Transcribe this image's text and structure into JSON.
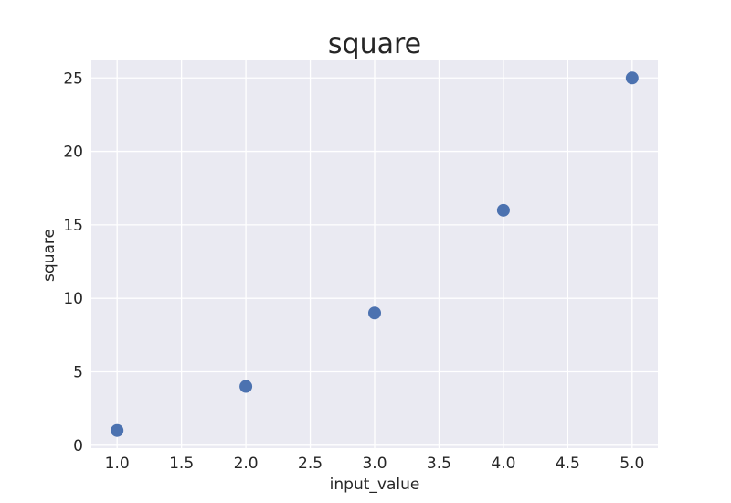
{
  "chart_data": {
    "type": "scatter",
    "title": "square",
    "xlabel": "input_value",
    "ylabel": "square",
    "x": [
      1,
      2,
      3,
      4,
      5
    ],
    "y": [
      1,
      4,
      9,
      16,
      25
    ],
    "xlim": [
      0.8,
      5.2
    ],
    "ylim": [
      -0.2,
      26.2
    ],
    "xticks": [
      1.0,
      1.5,
      2.0,
      2.5,
      3.0,
      3.5,
      4.0,
      4.5,
      5.0
    ],
    "xtick_labels": [
      "1.0",
      "1.5",
      "2.0",
      "2.5",
      "3.0",
      "3.5",
      "4.0",
      "4.5",
      "5.0"
    ],
    "yticks": [
      0,
      5,
      10,
      15,
      20,
      25
    ],
    "ytick_labels": [
      "0",
      "5",
      "10",
      "15",
      "20",
      "25"
    ],
    "grid": true,
    "colors": {
      "background": "#eaeaf2",
      "marker": "#4c72b0",
      "grid": "#ffffff"
    }
  }
}
